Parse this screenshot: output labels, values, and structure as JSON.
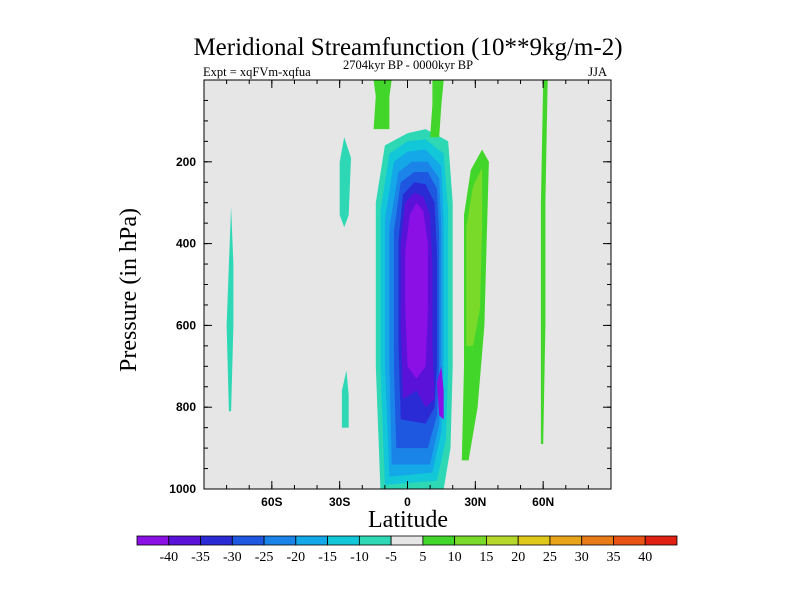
{
  "chart_data": {
    "type": "contour",
    "title": "Meridional Streamfunction (10**9kg/m-2)",
    "expt_label": "Expt = xqFVm-xqfua",
    "period_label": "2704kyr BP - 0000kyr BP",
    "season_label": "JJA",
    "xlabel": "Latitude",
    "ylabel": "Pressure (in hPa)",
    "xlim": [
      -90,
      90
    ],
    "ylim": [
      1000,
      0
    ],
    "x_ticks": [
      {
        "value": -60,
        "label": "60S"
      },
      {
        "value": -30,
        "label": "30S"
      },
      {
        "value": 0,
        "label": "0"
      },
      {
        "value": 30,
        "label": "30N"
      },
      {
        "value": 60,
        "label": "60N"
      }
    ],
    "y_ticks": [
      {
        "value": 200,
        "label": "200"
      },
      {
        "value": 400,
        "label": "400"
      },
      {
        "value": 600,
        "label": "600"
      },
      {
        "value": 800,
        "label": "800"
      },
      {
        "value": 1000,
        "label": "1000"
      }
    ],
    "y_minor_step": 50,
    "x_minor_step": 10,
    "levels": [
      -40,
      -35,
      -30,
      -25,
      -20,
      -15,
      -10,
      -5,
      5,
      10,
      15,
      20,
      25,
      30,
      35,
      40
    ],
    "colors": [
      "#8a10e6",
      "#5a12d9",
      "#2b2bd6",
      "#1e58e0",
      "#1b84e8",
      "#14a8e8",
      "#12c8d8",
      "#2ed8b4",
      "#e6e6e6",
      "#42d62a",
      "#7ada2a",
      "#b6d82a",
      "#e0c81a",
      "#e8a418",
      "#e87a18",
      "#e85214",
      "#e02010"
    ],
    "background_color": "#e6e6e6",
    "features": [
      {
        "name": "sh-tropics-cell",
        "level_index": 7,
        "poly": [
          [
            -12,
            1000
          ],
          [
            -14,
            700
          ],
          [
            -14,
            300
          ],
          [
            -10,
            160
          ],
          [
            0,
            130
          ],
          [
            8,
            120
          ],
          [
            18,
            150
          ],
          [
            20,
            300
          ],
          [
            20,
            700
          ],
          [
            19,
            900
          ],
          [
            16,
            1000
          ]
        ]
      },
      {
        "name": "sh-tropics-cell",
        "level_index": 6,
        "poly": [
          [
            -10,
            990
          ],
          [
            -12,
            700
          ],
          [
            -12,
            320
          ],
          [
            -8,
            180
          ],
          [
            0,
            150
          ],
          [
            8,
            145
          ],
          [
            16,
            180
          ],
          [
            18,
            320
          ],
          [
            18,
            700
          ],
          [
            17,
            880
          ],
          [
            13,
            980
          ]
        ]
      },
      {
        "name": "sh-tropics-cell",
        "level_index": 5,
        "poly": [
          [
            -8,
            970
          ],
          [
            -10,
            700
          ],
          [
            -10,
            340
          ],
          [
            -6,
            200
          ],
          [
            0,
            175
          ],
          [
            8,
            170
          ],
          [
            15,
            210
          ],
          [
            16,
            340
          ],
          [
            16,
            700
          ],
          [
            15,
            860
          ],
          [
            11,
            960
          ]
        ]
      },
      {
        "name": "sh-tropics-cell",
        "level_index": 4,
        "poly": [
          [
            -7,
            940
          ],
          [
            -8,
            700
          ],
          [
            -8,
            360
          ],
          [
            -4,
            225
          ],
          [
            2,
            200
          ],
          [
            9,
            200
          ],
          [
            14,
            240
          ],
          [
            15,
            360
          ],
          [
            15,
            700
          ],
          [
            14,
            840
          ],
          [
            10,
            940
          ]
        ]
      },
      {
        "name": "sh-tropics-cell",
        "level_index": 3,
        "poly": [
          [
            -5,
            900
          ],
          [
            -6,
            700
          ],
          [
            -6,
            370
          ],
          [
            -3,
            250
          ],
          [
            3,
            225
          ],
          [
            9,
            225
          ],
          [
            13,
            265
          ],
          [
            14,
            380
          ],
          [
            14,
            700
          ],
          [
            13,
            820
          ],
          [
            9,
            900
          ]
        ]
      },
      {
        "name": "sh-tropics-cell",
        "level_index": 2,
        "poly": [
          [
            -3,
            830
          ],
          [
            -4,
            650
          ],
          [
            -4,
            390
          ],
          [
            -2,
            280
          ],
          [
            3,
            250
          ],
          [
            8,
            255
          ],
          [
            12,
            300
          ],
          [
            13,
            420
          ],
          [
            13,
            700
          ],
          [
            12,
            800
          ],
          [
            8,
            840
          ]
        ]
      },
      {
        "name": "sh-tropics-cell",
        "level_index": 1,
        "poly": [
          [
            -2,
            780
          ],
          [
            -3,
            600
          ],
          [
            -3,
            400
          ],
          [
            -1,
            300
          ],
          [
            3,
            275
          ],
          [
            7,
            285
          ],
          [
            10,
            330
          ],
          [
            11,
            450
          ],
          [
            11,
            650
          ],
          [
            12,
            780
          ],
          [
            8,
            800
          ],
          [
            4,
            760
          ]
        ]
      },
      {
        "name": "sh-tropics-cell",
        "level_index": 0,
        "poly": [
          [
            0,
            700
          ],
          [
            -1,
            550
          ],
          [
            -1,
            420
          ],
          [
            1,
            330
          ],
          [
            4,
            300
          ],
          [
            7,
            320
          ],
          [
            9,
            400
          ],
          [
            9,
            560
          ],
          [
            8,
            700
          ],
          [
            4,
            730
          ]
        ]
      },
      {
        "name": "sh-minimum-lower",
        "level_index": 0,
        "poly": [
          [
            14,
            820
          ],
          [
            13,
            740
          ],
          [
            15,
            700
          ],
          [
            16,
            760
          ],
          [
            16,
            830
          ]
        ]
      },
      {
        "name": "nh-subtropical-cell",
        "level_index": 9,
        "poly": [
          [
            24,
            930
          ],
          [
            25,
            700
          ],
          [
            25,
            330
          ],
          [
            28,
            220
          ],
          [
            33,
            170
          ],
          [
            36,
            200
          ],
          [
            35,
            400
          ],
          [
            34,
            600
          ],
          [
            31,
            800
          ],
          [
            27,
            930
          ]
        ]
      },
      {
        "name": "nh-subtropical-cell",
        "level_index": 10,
        "poly": [
          [
            26,
            650
          ],
          [
            26,
            360
          ],
          [
            29,
            260
          ],
          [
            33,
            215
          ],
          [
            33,
            360
          ],
          [
            32,
            560
          ],
          [
            29,
            650
          ]
        ]
      },
      {
        "name": "nh-polar-band",
        "level_index": 9,
        "poly": [
          [
            59,
            890
          ],
          [
            59,
            600
          ],
          [
            59,
            300
          ],
          [
            60,
            0
          ],
          [
            62,
            0
          ],
          [
            61,
            300
          ],
          [
            61,
            600
          ],
          [
            60,
            890
          ]
        ]
      },
      {
        "name": "nh-upper-strip",
        "level_index": 9,
        "poly": [
          [
            -15,
            120
          ],
          [
            -14,
            40
          ],
          [
            -15,
            0
          ],
          [
            -7,
            0
          ],
          [
            -8,
            40
          ],
          [
            -8,
            120
          ]
        ]
      },
      {
        "name": "nh-upper-strip-b",
        "level_index": 9,
        "poly": [
          [
            10,
            140
          ],
          [
            11,
            60
          ],
          [
            11,
            0
          ],
          [
            16,
            0
          ],
          [
            15,
            60
          ],
          [
            14,
            140
          ]
        ]
      },
      {
        "name": "sh-midlat-upper",
        "level_index": 7,
        "poly": [
          [
            -30,
            330
          ],
          [
            -30,
            200
          ],
          [
            -28,
            140
          ],
          [
            -25,
            190
          ],
          [
            -26,
            330
          ],
          [
            -28,
            360
          ]
        ]
      },
      {
        "name": "sh-midlat-lower",
        "level_index": 7,
        "poly": [
          [
            -29,
            850
          ],
          [
            -29,
            760
          ],
          [
            -27,
            710
          ],
          [
            -26,
            770
          ],
          [
            -26,
            850
          ]
        ]
      },
      {
        "name": "sh-polar-strip",
        "level_index": 7,
        "poly": [
          [
            -79,
            810
          ],
          [
            -80,
            600
          ],
          [
            -79,
            450
          ],
          [
            -78,
            310
          ],
          [
            -77,
            450
          ],
          [
            -77,
            600
          ],
          [
            -78,
            810
          ]
        ]
      }
    ],
    "colorbar": {
      "labels": [
        "-40",
        "-35",
        "-30",
        "-25",
        "-20",
        "-15",
        "-10",
        "-5",
        "5",
        "10",
        "15",
        "20",
        "25",
        "30",
        "35",
        "40"
      ]
    }
  }
}
